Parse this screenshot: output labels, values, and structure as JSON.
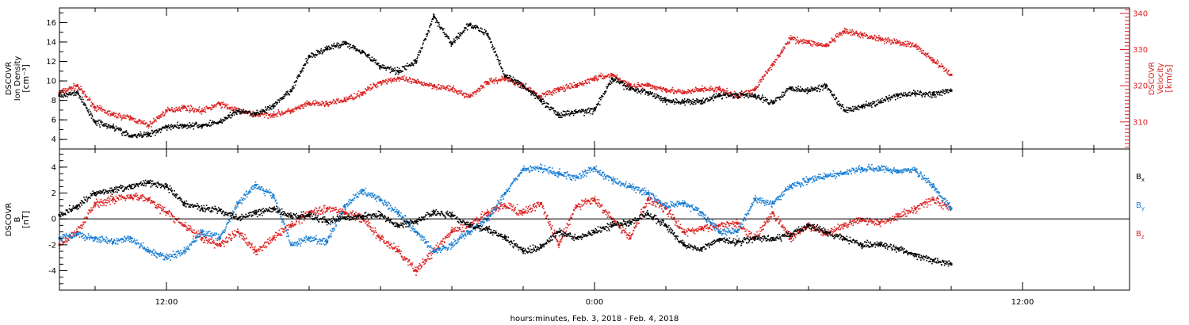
{
  "xlabel": "hours:minutes, Feb.  3, 2018 - Feb.  4, 2018",
  "chart_data": [
    {
      "type": "scatter",
      "title": "",
      "xlabel": "hours:minutes, Feb.  3, 2018 - Feb.  4, 2018",
      "ylabel": [
        "DSCOVR",
        "Ion Density",
        "[cm⁻³]"
      ],
      "ylabel_right": [
        "DSCOVR",
        "Velocity",
        "[km/s]"
      ],
      "x_unit": "hours since 00:00 Feb. 3, 2018",
      "xlim": [
        9,
        39
      ],
      "x_ticks": [
        12,
        24,
        36
      ],
      "x_tick_labels": [
        "12:00",
        "0:00",
        "12:00"
      ],
      "ylim": [
        3,
        17.5
      ],
      "y_ticks": [
        4,
        6,
        8,
        10,
        12,
        14,
        16
      ],
      "ylim_right": [
        302.5,
        341.5
      ],
      "y_ticks_right": [
        310,
        320,
        330,
        340
      ],
      "y_right_color": "#dd2222",
      "series": [
        {
          "name": "Ion Density",
          "axis": "left",
          "color": "#000000",
          "x": [
            9.0,
            9.5,
            10.0,
            10.5,
            11.0,
            11.5,
            12.0,
            12.5,
            13.0,
            13.5,
            14.0,
            14.5,
            15.0,
            15.5,
            16.0,
            16.5,
            17.0,
            17.5,
            18.0,
            18.5,
            19.0,
            19.5,
            20.0,
            20.5,
            21.0,
            21.5,
            22.0,
            22.5,
            23.0,
            23.5,
            24.0,
            24.5,
            25.0,
            25.5,
            26.0,
            26.5,
            27.0,
            27.5,
            28.0,
            28.5,
            29.0,
            29.5,
            30.0,
            30.5,
            31.0,
            31.5,
            32.0,
            32.5,
            33.0,
            33.5,
            34.0
          ],
          "y": [
            8.5,
            8.8,
            5.8,
            5.3,
            4.3,
            4.5,
            5.3,
            5.4,
            5.4,
            5.8,
            6.9,
            6.6,
            7.4,
            9.0,
            12.5,
            13.3,
            13.9,
            13.0,
            11.5,
            11.0,
            12.0,
            16.6,
            13.8,
            15.8,
            14.8,
            10.5,
            9.5,
            8.0,
            6.5,
            6.8,
            7.0,
            10.2,
            9.2,
            8.8,
            8.0,
            7.8,
            7.9,
            8.5,
            8.6,
            8.4,
            7.8,
            9.3,
            9.0,
            9.5,
            7.0,
            7.4,
            7.8,
            8.5,
            8.7,
            8.6,
            9.0
          ]
        },
        {
          "name": "Velocity",
          "axis": "right",
          "color": "#dd2222",
          "x": [
            9.0,
            9.5,
            10.0,
            10.5,
            11.0,
            11.5,
            12.0,
            12.5,
            13.0,
            13.5,
            14.0,
            14.5,
            15.0,
            15.5,
            16.0,
            16.5,
            17.0,
            17.5,
            18.0,
            18.5,
            19.0,
            19.5,
            20.0,
            20.5,
            21.0,
            21.5,
            22.0,
            22.5,
            23.0,
            23.5,
            24.0,
            24.5,
            25.0,
            25.5,
            26.0,
            26.5,
            27.0,
            27.5,
            28.0,
            28.5,
            29.0,
            29.5,
            30.0,
            30.5,
            31.0,
            31.5,
            32.0,
            32.5,
            33.0,
            33.5,
            34.0
          ],
          "y": [
            318,
            320,
            314,
            312,
            311,
            309,
            313,
            314,
            313,
            315,
            313,
            312,
            312,
            313,
            315,
            315,
            316,
            318,
            321,
            322,
            321,
            320,
            319,
            317,
            321,
            322,
            320,
            317,
            319,
            320,
            322,
            323,
            320,
            320,
            319,
            318,
            319,
            319,
            317,
            319,
            326,
            333,
            332,
            331,
            335,
            334,
            333,
            332,
            331,
            327,
            323
          ]
        }
      ]
    },
    {
      "type": "scatter",
      "title": "",
      "xlabel": "hours:minutes, Feb.  3, 2018 - Feb.  4, 2018",
      "ylabel": [
        "DSCOVR",
        "B",
        "[nT]"
      ],
      "x_unit": "hours since 00:00 Feb. 3, 2018",
      "xlim": [
        9,
        39
      ],
      "x_ticks": [
        12,
        24,
        36
      ],
      "x_tick_labels": [
        "12:00",
        "0:00",
        "12:00"
      ],
      "ylim": [
        -5.5,
        5.4
      ],
      "y_ticks": [
        -4,
        -2,
        0,
        2,
        4
      ],
      "zero_line": true,
      "legend_position": "right",
      "series": [
        {
          "name": "Bx",
          "label_main": "B",
          "label_sub": "x",
          "color": "#000000",
          "x": [
            9.0,
            9.5,
            10.0,
            10.5,
            11.0,
            11.5,
            12.0,
            12.5,
            13.0,
            13.5,
            14.0,
            14.5,
            15.0,
            15.5,
            16.0,
            16.5,
            17.0,
            17.5,
            18.0,
            18.5,
            19.0,
            19.5,
            20.0,
            20.5,
            21.0,
            21.5,
            22.0,
            22.5,
            23.0,
            23.5,
            24.0,
            24.5,
            25.0,
            25.5,
            26.0,
            26.5,
            27.0,
            27.5,
            28.0,
            28.5,
            29.0,
            29.5,
            30.0,
            30.5,
            31.0,
            31.5,
            32.0,
            32.5,
            33.0,
            33.5,
            34.0
          ],
          "y": [
            0.3,
            1.0,
            2.0,
            2.2,
            2.5,
            2.8,
            2.5,
            1.2,
            0.8,
            0.7,
            0.0,
            0.5,
            0.8,
            0.2,
            0.3,
            -0.2,
            0.1,
            0.2,
            0.3,
            -0.5,
            -0.2,
            0.5,
            0.3,
            -0.5,
            -0.8,
            -1.5,
            -2.5,
            -2.2,
            -1.0,
            -1.5,
            -1.0,
            -0.5,
            -0.3,
            0.4,
            -0.5,
            -2.0,
            -2.3,
            -1.6,
            -1.8,
            -1.5,
            -1.6,
            -1.2,
            -0.5,
            -1.0,
            -1.5,
            -2.0,
            -2.0,
            -2.3,
            -2.8,
            -3.2,
            -3.5
          ]
        },
        {
          "name": "By",
          "label_main": "B",
          "label_sub": "y",
          "color": "#1a7fd4",
          "x": [
            9.0,
            9.5,
            10.0,
            10.5,
            11.0,
            11.5,
            12.0,
            12.5,
            13.0,
            13.5,
            14.0,
            14.5,
            15.0,
            15.5,
            16.0,
            16.5,
            17.0,
            17.5,
            18.0,
            18.5,
            19.0,
            19.5,
            20.0,
            20.5,
            21.0,
            21.5,
            22.0,
            22.5,
            23.0,
            23.5,
            24.0,
            24.5,
            25.0,
            25.5,
            26.0,
            26.5,
            27.0,
            27.5,
            28.0,
            28.5,
            29.0,
            29.5,
            30.0,
            30.5,
            31.0,
            31.5,
            32.0,
            32.5,
            33.0,
            33.5,
            34.0
          ],
          "y": [
            -1.5,
            -1.2,
            -1.5,
            -1.8,
            -1.5,
            -2.5,
            -3.0,
            -2.5,
            -1.0,
            -1.5,
            1.2,
            2.6,
            1.8,
            -2.0,
            -1.5,
            -1.8,
            1.0,
            2.2,
            1.5,
            0.5,
            -1.0,
            -2.5,
            -2.0,
            -1.0,
            0.0,
            2.0,
            3.8,
            3.9,
            3.5,
            3.2,
            3.9,
            3.0,
            2.5,
            2.0,
            1.0,
            1.2,
            0.5,
            -1.0,
            -1.0,
            1.5,
            1.2,
            2.5,
            3.0,
            3.3,
            3.5,
            3.9,
            3.9,
            3.7,
            3.8,
            2.5,
            0.8
          ]
        },
        {
          "name": "Bz",
          "label_main": "B",
          "label_sub": "z",
          "color": "#dd2222",
          "x": [
            9.0,
            9.5,
            10.0,
            10.5,
            11.0,
            11.5,
            12.0,
            12.5,
            13.0,
            13.5,
            14.0,
            14.5,
            15.0,
            15.5,
            16.0,
            16.5,
            17.0,
            17.5,
            18.0,
            18.5,
            19.0,
            19.5,
            20.0,
            20.5,
            21.0,
            21.5,
            22.0,
            22.5,
            23.0,
            23.5,
            24.0,
            24.5,
            25.0,
            25.5,
            26.0,
            26.5,
            27.0,
            27.5,
            28.0,
            28.5,
            29.0,
            29.5,
            30.0,
            30.5,
            31.0,
            31.5,
            32.0,
            32.5,
            33.0,
            33.5,
            34.0
          ],
          "y": [
            -2.0,
            -1.0,
            1.2,
            1.5,
            1.8,
            1.5,
            0.5,
            -0.5,
            -1.5,
            -2.0,
            -1.0,
            -2.5,
            -1.5,
            -0.5,
            0.5,
            0.8,
            0.5,
            0.0,
            -1.5,
            -2.5,
            -4.0,
            -2.5,
            -1.0,
            -0.5,
            0.5,
            1.0,
            0.5,
            1.2,
            -2.0,
            1.0,
            1.5,
            0.0,
            -1.5,
            1.5,
            0.8,
            -1.0,
            -0.8,
            -0.5,
            -0.3,
            -1.5,
            0.5,
            -1.5,
            -0.5,
            -1.2,
            -0.5,
            0.0,
            -0.3,
            0.2,
            0.8,
            1.5,
            0.8
          ]
        }
      ]
    }
  ]
}
